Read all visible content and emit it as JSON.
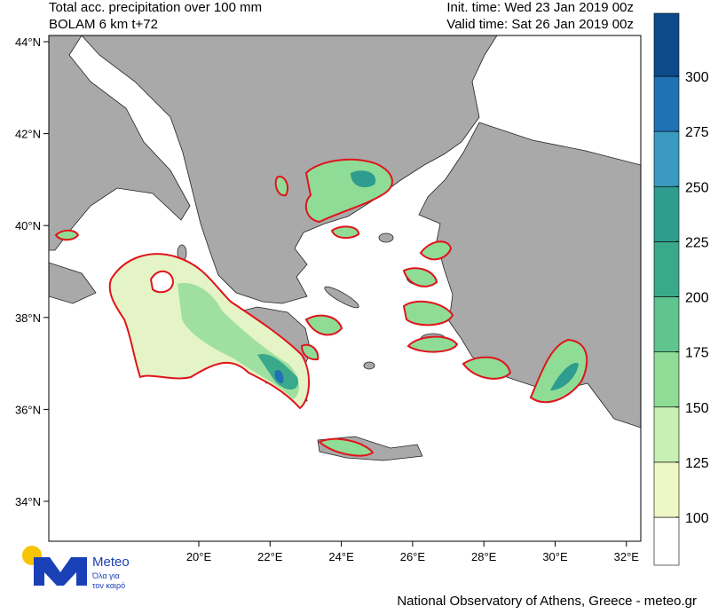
{
  "header": {
    "title": "Total acc. precipitation over 100 mm",
    "model": "BOLAM 6 km t+72",
    "init_time": "Init. time: Wed 23 Jan 2019 00z",
    "valid_time": "Valid time: Sat 26 Jan 2019 00z"
  },
  "map": {
    "lat_labels": [
      "44°N",
      "42°N",
      "40°N",
      "38°N",
      "36°N",
      "34°N"
    ],
    "lon_labels": [
      "20°E",
      "22°E",
      "24°E",
      "26°E",
      "28°E",
      "30°E",
      "32°E"
    ]
  },
  "colorbar": {
    "ticks": [
      100,
      125,
      150,
      175,
      200,
      225,
      250,
      275,
      300
    ],
    "colors": [
      "#ffffff",
      "#eef7c6",
      "#c8efb4",
      "#8fdc96",
      "#5fc48e",
      "#3aa88a",
      "#2e9c8e",
      "#3a9ac0",
      "#1f72b4",
      "#0d4a8c"
    ]
  },
  "logo": {
    "name": "Meteo",
    "tagline_1": "Όλα για",
    "tagline_2": "τον καιρό"
  },
  "footer": "National Observatory of Athens, Greece - meteo.gr"
}
